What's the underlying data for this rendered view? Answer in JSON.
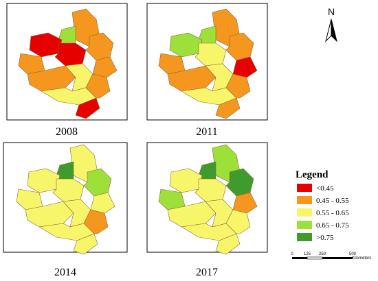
{
  "panels": [
    {
      "year": "2008"
    },
    {
      "year": "2011"
    },
    {
      "year": "2014"
    },
    {
      "year": "2017"
    }
  ],
  "legend": {
    "title": "Legend",
    "items": [
      {
        "label": "<0.45",
        "color": "#e60000"
      },
      {
        "label": "0.45 - 0.55",
        "color": "#f5961e"
      },
      {
        "label": "0.55 - 0.65",
        "color": "#f7f66a"
      },
      {
        "label": "0.65 - 0.75",
        "color": "#9ee03a"
      },
      {
        "label": ">0.75",
        "color": "#3f9c2c"
      }
    ]
  },
  "north": "N",
  "scale": {
    "ticks": [
      "0",
      "125",
      "250",
      "500"
    ],
    "unit": "Kilometers"
  }
}
